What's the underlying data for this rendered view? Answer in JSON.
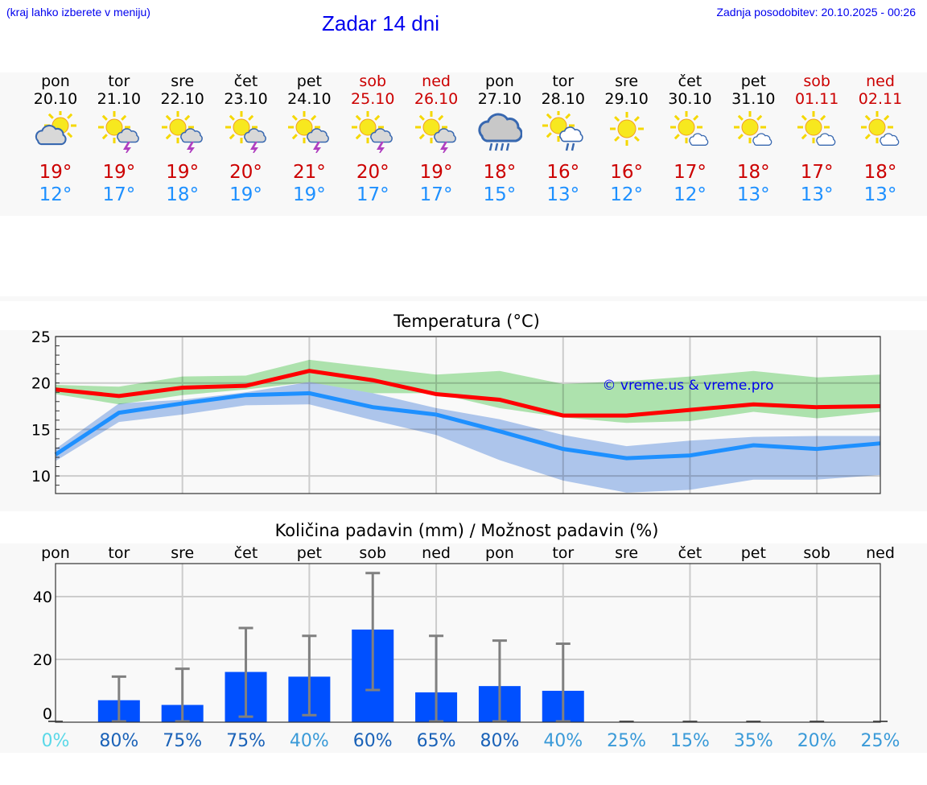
{
  "header": {
    "hint": "(kraj lahko izberete v meniju)",
    "title": "Zadar 14 dni",
    "updated": "Zadnja posodobitev: 20.10.2025 - 00:26"
  },
  "days": [
    {
      "name": "pon",
      "date": "20.10",
      "weekend": false,
      "icon": "partly-cloudy-icon",
      "tmax": "19°",
      "tmin": "12°"
    },
    {
      "name": "tor",
      "date": "21.10",
      "weekend": false,
      "icon": "sun-thunderstorm-icon",
      "tmax": "19°",
      "tmin": "17°"
    },
    {
      "name": "sre",
      "date": "22.10",
      "weekend": false,
      "icon": "sun-thunderstorm-icon",
      "tmax": "19°",
      "tmin": "18°"
    },
    {
      "name": "čet",
      "date": "23.10",
      "weekend": false,
      "icon": "sun-thunderstorm-icon",
      "tmax": "20°",
      "tmin": "19°"
    },
    {
      "name": "pet",
      "date": "24.10",
      "weekend": false,
      "icon": "sun-thunderstorm-icon",
      "tmax": "21°",
      "tmin": "19°"
    },
    {
      "name": "sob",
      "date": "25.10",
      "weekend": true,
      "icon": "sun-thunderstorm-icon",
      "tmax": "20°",
      "tmin": "17°"
    },
    {
      "name": "ned",
      "date": "26.10",
      "weekend": true,
      "icon": "sun-thunderstorm-icon",
      "tmax": "19°",
      "tmin": "17°"
    },
    {
      "name": "pon",
      "date": "27.10",
      "weekend": false,
      "icon": "rain-cloud-icon",
      "tmax": "18°",
      "tmin": "15°"
    },
    {
      "name": "tor",
      "date": "28.10",
      "weekend": false,
      "icon": "sun-rain-icon",
      "tmax": "16°",
      "tmin": "13°"
    },
    {
      "name": "sre",
      "date": "29.10",
      "weekend": false,
      "icon": "sun-icon",
      "tmax": "16°",
      "tmin": "12°"
    },
    {
      "name": "čet",
      "date": "30.10",
      "weekend": false,
      "icon": "sun-small-cloud-icon",
      "tmax": "17°",
      "tmin": "12°"
    },
    {
      "name": "pet",
      "date": "31.10",
      "weekend": false,
      "icon": "sun-small-cloud-icon",
      "tmax": "18°",
      "tmin": "13°"
    },
    {
      "name": "sob",
      "date": "01.11",
      "weekend": true,
      "icon": "sun-small-cloud-icon",
      "tmax": "17°",
      "tmin": "13°"
    },
    {
      "name": "ned",
      "date": "02.11",
      "weekend": true,
      "icon": "sun-small-cloud-icon",
      "tmax": "18°",
      "tmin": "13°"
    }
  ],
  "colors": {
    "max": "#ff0000",
    "min": "#1e90ff",
    "maxband": "#a8e6a8",
    "minband": "#a8c4f0",
    "bar": "#0050ff",
    "err": "#808080"
  },
  "chart_data": [
    {
      "type": "line",
      "title": "Temperatura (°C)",
      "ylim": [
        8.1,
        25
      ],
      "yticks": [
        10,
        15,
        20,
        25
      ],
      "watermark": "© vreme.us & vreme.pro",
      "series": [
        {
          "name": "max",
          "values": [
            19.3,
            18.6,
            19.5,
            19.7,
            21.3,
            20.3,
            18.8,
            18.2,
            16.5,
            16.5,
            17.1,
            17.7,
            17.4,
            17.5
          ]
        },
        {
          "name": "min",
          "values": [
            12.3,
            16.8,
            17.8,
            18.7,
            18.9,
            17.4,
            16.6,
            14.8,
            12.9,
            11.9,
            12.2,
            13.3,
            12.9,
            13.5
          ]
        },
        {
          "name": "max_range_high",
          "values": [
            19.8,
            19.6,
            20.7,
            20.8,
            22.5,
            21.7,
            20.9,
            21.3,
            19.9,
            20.2,
            20.7,
            21.3,
            20.6,
            20.9
          ]
        },
        {
          "name": "max_range_low",
          "values": [
            18.8,
            17.7,
            18.7,
            19.3,
            20.1,
            18.9,
            18.9,
            17.3,
            16.3,
            15.7,
            15.9,
            16.9,
            16.2,
            16.9
          ]
        },
        {
          "name": "min_range_high",
          "values": [
            12.9,
            17.8,
            18.2,
            19.0,
            20.1,
            18.9,
            17.3,
            16.1,
            14.4,
            13.2,
            13.8,
            14.2,
            14.3,
            14.3
          ]
        },
        {
          "name": "min_range_low",
          "values": [
            11.6,
            15.8,
            16.6,
            17.6,
            17.7,
            16.0,
            14.4,
            11.7,
            9.5,
            8.2,
            8.5,
            9.6,
            9.6,
            10.1
          ]
        }
      ]
    },
    {
      "type": "bar",
      "title": "Količina padavin (mm) / Možnost padavin (%)",
      "ylim": [
        0,
        50.5
      ],
      "yticks": [
        0,
        20,
        40
      ],
      "categories": [
        "pon",
        "tor",
        "sre",
        "čet",
        "pet",
        "sob",
        "ned",
        "pon",
        "tor",
        "sre",
        "čet",
        "pet",
        "sob",
        "ned"
      ],
      "values": [
        0,
        7,
        5.5,
        16,
        14.5,
        29.5,
        9.5,
        11.5,
        10,
        0,
        0,
        0,
        0,
        0
      ],
      "err_low": [
        0,
        0,
        0,
        1.5,
        2,
        10,
        0,
        0,
        0,
        0,
        0,
        0,
        0,
        0
      ],
      "err_high": [
        0,
        14.5,
        17,
        30,
        27.5,
        47.5,
        27.5,
        26,
        25,
        0,
        0,
        0,
        0,
        0
      ],
      "probability": [
        "0%",
        "80%",
        "75%",
        "75%",
        "40%",
        "60%",
        "65%",
        "80%",
        "40%",
        "25%",
        "15%",
        "35%",
        "20%",
        "25%"
      ],
      "probability_colors": [
        "#5ad8e8",
        "#1a62b8",
        "#1a62b8",
        "#1a62b8",
        "#3a9ad8",
        "#1a62b8",
        "#1a62b8",
        "#1a62b8",
        "#3a9ad8",
        "#3a9ad8",
        "#3a9ad8",
        "#3a9ad8",
        "#3a9ad8",
        "#3a9ad8"
      ]
    }
  ]
}
